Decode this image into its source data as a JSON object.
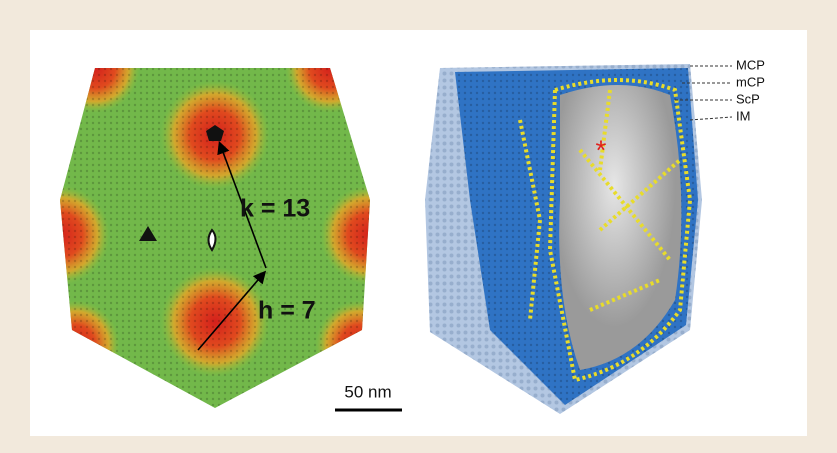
{
  "figure": {
    "left": {
      "k_label": "k = 13",
      "h_label": "h = 7",
      "scale_bar": "50 nm"
    },
    "right": {
      "asterisk": "*",
      "layers": [
        "MCP",
        "mCP",
        "ScP",
        "IM"
      ]
    }
  }
}
